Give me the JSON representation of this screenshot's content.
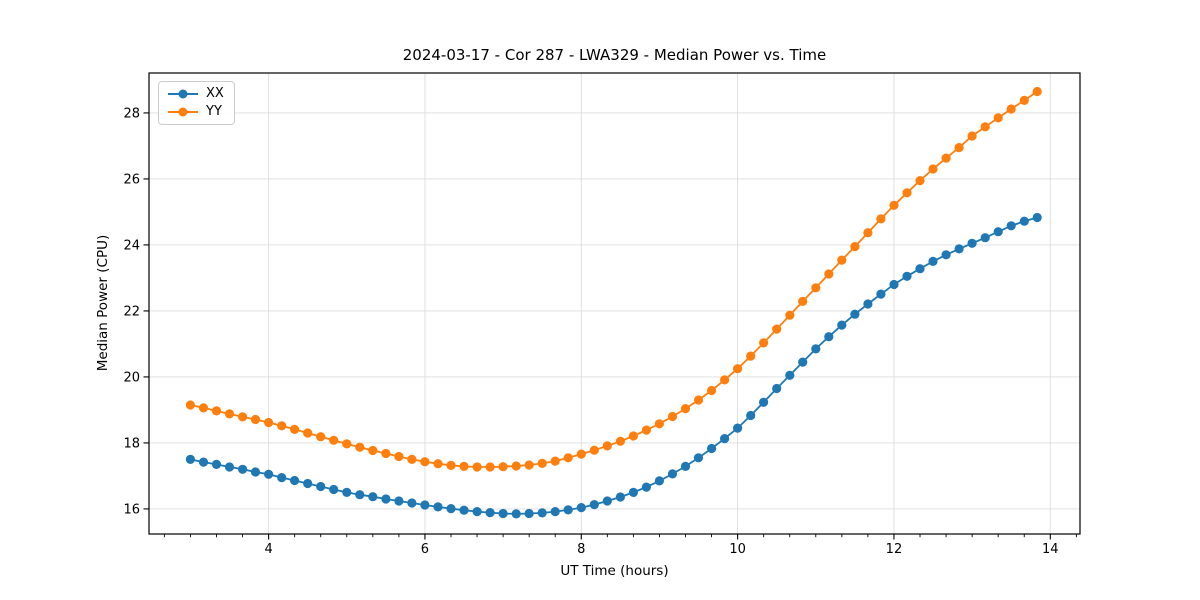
{
  "chart_data": {
    "type": "line",
    "title": "2024-03-17 - Cor 287 - LWA329 - Median Power vs. Time",
    "xlabel": "UT Time (hours)",
    "ylabel": "Median Power (CPU)",
    "xlim": [
      2.47,
      14.38
    ],
    "ylim": [
      15.24,
      29.21
    ],
    "x_ticks": [
      4,
      6,
      8,
      10,
      12,
      14
    ],
    "y_ticks": [
      16,
      18,
      20,
      22,
      24,
      26,
      28
    ],
    "x_minor_step": 0.3333333,
    "grid": true,
    "legend_position": "upper-left",
    "background": "#ffffff",
    "grid_color": "#dddddd",
    "frame_color": "#000000",
    "x": [
      3.0,
      3.167,
      3.333,
      3.5,
      3.667,
      3.833,
      4.0,
      4.167,
      4.333,
      4.5,
      4.667,
      4.833,
      5.0,
      5.167,
      5.333,
      5.5,
      5.667,
      5.833,
      6.0,
      6.167,
      6.333,
      6.5,
      6.667,
      6.833,
      7.0,
      7.167,
      7.333,
      7.5,
      7.667,
      7.833,
      8.0,
      8.167,
      8.333,
      8.5,
      8.667,
      8.833,
      9.0,
      9.167,
      9.333,
      9.5,
      9.667,
      9.833,
      10.0,
      10.167,
      10.333,
      10.5,
      10.667,
      10.833,
      11.0,
      11.167,
      11.333,
      11.5,
      11.667,
      11.833,
      12.0,
      12.167,
      12.333,
      12.5,
      12.667,
      12.833,
      13.0,
      13.167,
      13.333,
      13.5,
      13.667,
      13.833
    ],
    "series": [
      {
        "name": "XX",
        "color": "#1f77b4",
        "values": [
          17.5,
          17.42,
          17.35,
          17.27,
          17.2,
          17.12,
          17.05,
          16.95,
          16.86,
          16.77,
          16.68,
          16.59,
          16.5,
          16.43,
          16.37,
          16.3,
          16.24,
          16.18,
          16.12,
          16.06,
          16.01,
          15.96,
          15.92,
          15.89,
          15.86,
          15.85,
          15.86,
          15.88,
          15.92,
          15.97,
          16.04,
          16.13,
          16.24,
          16.36,
          16.5,
          16.66,
          16.85,
          17.06,
          17.29,
          17.55,
          17.83,
          18.13,
          18.45,
          18.83,
          19.23,
          19.65,
          20.05,
          20.45,
          20.85,
          21.22,
          21.57,
          21.9,
          22.21,
          22.51,
          22.8,
          23.05,
          23.28,
          23.5,
          23.7,
          23.88,
          24.05,
          24.22,
          24.4,
          24.58,
          24.72,
          24.83
        ]
      },
      {
        "name": "YY",
        "color": "#ff7f0e",
        "values": [
          19.15,
          19.06,
          18.97,
          18.88,
          18.79,
          18.71,
          18.62,
          18.52,
          18.41,
          18.3,
          18.19,
          18.08,
          17.97,
          17.87,
          17.77,
          17.68,
          17.59,
          17.5,
          17.43,
          17.37,
          17.32,
          17.29,
          17.27,
          17.27,
          17.28,
          17.3,
          17.33,
          17.38,
          17.45,
          17.55,
          17.66,
          17.78,
          17.91,
          18.05,
          18.21,
          18.39,
          18.58,
          18.8,
          19.04,
          19.3,
          19.59,
          19.91,
          20.25,
          20.63,
          21.03,
          21.45,
          21.87,
          22.29,
          22.7,
          23.12,
          23.54,
          23.95,
          24.37,
          24.79,
          25.2,
          25.58,
          25.95,
          26.3,
          26.63,
          26.95,
          27.3,
          27.58,
          27.85,
          28.12,
          28.38,
          28.65
        ]
      }
    ]
  }
}
